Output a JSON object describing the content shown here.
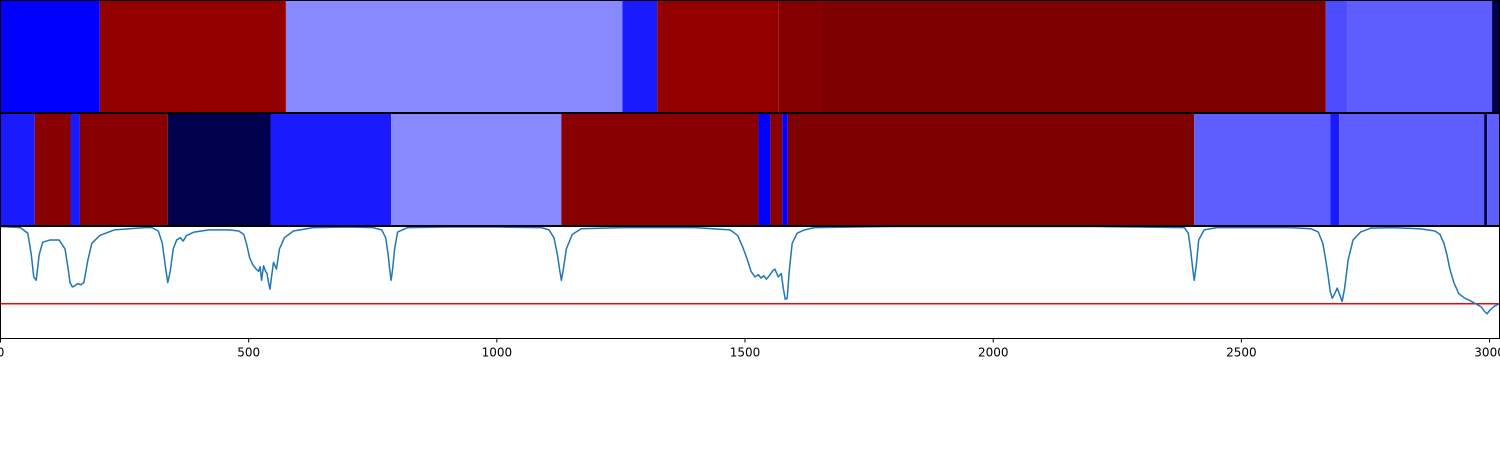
{
  "chart_data": [
    {
      "type": "heatmap",
      "colors": {
        "bright_blue": "#0000ff",
        "deep_blue": "#1a1aff",
        "mid_blue": "#4d4dff",
        "periwinkle": "#5e5eff",
        "light_blue": "#8888ff",
        "navy": "#00004c",
        "red": "#920000",
        "dark_red": "#880000",
        "darker_red": "#840000",
        "maroon": "#7f0000"
      },
      "segments": [
        {
          "start": 0,
          "end": 200,
          "color": "bright_blue"
        },
        {
          "start": 200,
          "end": 575,
          "color": "red"
        },
        {
          "start": 575,
          "end": 1253,
          "color": "light_blue"
        },
        {
          "start": 1253,
          "end": 1323,
          "color": "deep_blue"
        },
        {
          "start": 1323,
          "end": 1567,
          "color": "red"
        },
        {
          "start": 1567,
          "end": 1653,
          "color": "darker_red"
        },
        {
          "start": 1653,
          "end": 2670,
          "color": "maroon"
        },
        {
          "start": 2670,
          "end": 2714,
          "color": "mid_blue"
        },
        {
          "start": 2714,
          "end": 3005,
          "color": "periwinkle"
        },
        {
          "start": 3005,
          "end": 3020,
          "color": "navy"
        }
      ]
    },
    {
      "type": "heatmap",
      "segments": [
        {
          "start": 0,
          "end": 69,
          "color": "deep_blue"
        },
        {
          "start": 69,
          "end": 141,
          "color": "dark_red"
        },
        {
          "start": 141,
          "end": 160,
          "color": "deep_blue"
        },
        {
          "start": 160,
          "end": 337,
          "color": "dark_red"
        },
        {
          "start": 337,
          "end": 544,
          "color": "navy"
        },
        {
          "start": 544,
          "end": 787,
          "color": "deep_blue"
        },
        {
          "start": 787,
          "end": 1130,
          "color": "light_blue"
        },
        {
          "start": 1130,
          "end": 1527,
          "color": "dark_red"
        },
        {
          "start": 1527,
          "end": 1551,
          "color": "bright_blue"
        },
        {
          "start": 1551,
          "end": 1575,
          "color": "dark_red"
        },
        {
          "start": 1575,
          "end": 1586,
          "color": "bright_blue"
        },
        {
          "start": 1586,
          "end": 2405,
          "color": "maroon"
        },
        {
          "start": 2405,
          "end": 2679,
          "color": "periwinkle"
        },
        {
          "start": 2679,
          "end": 2697,
          "color": "deep_blue"
        },
        {
          "start": 2697,
          "end": 2989,
          "color": "periwinkle"
        },
        {
          "start": 2989,
          "end": 2995,
          "color": "navy"
        },
        {
          "start": 2995,
          "end": 3020,
          "color": "periwinkle"
        }
      ]
    },
    {
      "type": "line",
      "x_ticks": [
        0,
        500,
        1000,
        1500,
        2000,
        2500,
        3000
      ],
      "xlim": [
        0,
        3020
      ],
      "ylim": [
        0,
        1
      ],
      "series": [
        {
          "color": "#1f77b4",
          "points": [
            [
              0,
              1.0
            ],
            [
              40,
              0.99
            ],
            [
              55,
              0.94
            ],
            [
              62,
              0.75
            ],
            [
              67,
              0.55
            ],
            [
              72,
              0.52
            ],
            [
              78,
              0.75
            ],
            [
              85,
              0.86
            ],
            [
              100,
              0.88
            ],
            [
              118,
              0.88
            ],
            [
              130,
              0.8
            ],
            [
              137,
              0.6
            ],
            [
              140,
              0.5
            ],
            [
              145,
              0.46
            ],
            [
              150,
              0.47
            ],
            [
              155,
              0.49
            ],
            [
              162,
              0.48
            ],
            [
              168,
              0.5
            ],
            [
              176,
              0.7
            ],
            [
              184,
              0.85
            ],
            [
              200,
              0.92
            ],
            [
              230,
              0.97
            ],
            [
              260,
              0.98
            ],
            [
              290,
              0.99
            ],
            [
              305,
              0.99
            ],
            [
              318,
              0.96
            ],
            [
              326,
              0.85
            ],
            [
              332,
              0.65
            ],
            [
              337,
              0.5
            ],
            [
              342,
              0.6
            ],
            [
              348,
              0.8
            ],
            [
              355,
              0.88
            ],
            [
              362,
              0.9
            ],
            [
              368,
              0.87
            ],
            [
              375,
              0.92
            ],
            [
              390,
              0.95
            ],
            [
              420,
              0.97
            ],
            [
              460,
              0.97
            ],
            [
              480,
              0.96
            ],
            [
              490,
              0.93
            ],
            [
              496,
              0.84
            ],
            [
              502,
              0.72
            ],
            [
              508,
              0.66
            ],
            [
              515,
              0.62
            ],
            [
              520,
              0.6
            ],
            [
              523,
              0.64
            ],
            [
              526,
              0.52
            ],
            [
              530,
              0.65
            ],
            [
              534,
              0.6
            ],
            [
              537,
              0.58
            ],
            [
              540,
              0.5
            ],
            [
              543,
              0.44
            ],
            [
              546,
              0.55
            ],
            [
              550,
              0.68
            ],
            [
              556,
              0.62
            ],
            [
              562,
              0.8
            ],
            [
              572,
              0.9
            ],
            [
              590,
              0.96
            ],
            [
              630,
              0.99
            ],
            [
              700,
              0.995
            ],
            [
              750,
              0.99
            ],
            [
              768,
              0.97
            ],
            [
              776,
              0.9
            ],
            [
              781,
              0.75
            ],
            [
              784,
              0.62
            ],
            [
              787,
              0.52
            ],
            [
              790,
              0.62
            ],
            [
              794,
              0.8
            ],
            [
              800,
              0.95
            ],
            [
              820,
              0.99
            ],
            [
              900,
              0.995
            ],
            [
              1000,
              0.995
            ],
            [
              1090,
              0.99
            ],
            [
              1105,
              0.97
            ],
            [
              1115,
              0.9
            ],
            [
              1122,
              0.75
            ],
            [
              1127,
              0.6
            ],
            [
              1130,
              0.52
            ],
            [
              1134,
              0.62
            ],
            [
              1140,
              0.8
            ],
            [
              1152,
              0.93
            ],
            [
              1170,
              0.98
            ],
            [
              1250,
              0.99
            ],
            [
              1400,
              0.99
            ],
            [
              1470,
              0.97
            ],
            [
              1485,
              0.92
            ],
            [
              1495,
              0.82
            ],
            [
              1505,
              0.7
            ],
            [
              1512,
              0.6
            ],
            [
              1520,
              0.55
            ],
            [
              1527,
              0.57
            ],
            [
              1532,
              0.54
            ],
            [
              1538,
              0.56
            ],
            [
              1543,
              0.53
            ],
            [
              1549,
              0.56
            ],
            [
              1555,
              0.6
            ],
            [
              1560,
              0.62
            ],
            [
              1567,
              0.55
            ],
            [
              1573,
              0.58
            ],
            [
              1577,
              0.45
            ],
            [
              1581,
              0.35
            ],
            [
              1585,
              0.36
            ],
            [
              1589,
              0.6
            ],
            [
              1595,
              0.85
            ],
            [
              1605,
              0.94
            ],
            [
              1620,
              0.97
            ],
            [
              1640,
              0.99
            ],
            [
              1800,
              1.0
            ],
            [
              2000,
              1.0
            ],
            [
              2200,
              1.0
            ],
            [
              2385,
              0.99
            ],
            [
              2393,
              0.94
            ],
            [
              2398,
              0.78
            ],
            [
              2402,
              0.62
            ],
            [
              2405,
              0.52
            ],
            [
              2409,
              0.65
            ],
            [
              2414,
              0.88
            ],
            [
              2425,
              0.97
            ],
            [
              2450,
              0.99
            ],
            [
              2600,
              0.99
            ],
            [
              2640,
              0.98
            ],
            [
              2655,
              0.95
            ],
            [
              2664,
              0.85
            ],
            [
              2670,
              0.7
            ],
            [
              2675,
              0.55
            ],
            [
              2679,
              0.42
            ],
            [
              2683,
              0.36
            ],
            [
              2688,
              0.4
            ],
            [
              2693,
              0.45
            ],
            [
              2699,
              0.38
            ],
            [
              2703,
              0.33
            ],
            [
              2708,
              0.45
            ],
            [
              2715,
              0.7
            ],
            [
              2725,
              0.88
            ],
            [
              2740,
              0.95
            ],
            [
              2760,
              0.985
            ],
            [
              2800,
              0.99
            ],
            [
              2860,
              0.98
            ],
            [
              2890,
              0.96
            ],
            [
              2900,
              0.93
            ],
            [
              2908,
              0.85
            ],
            [
              2914,
              0.75
            ],
            [
              2920,
              0.62
            ],
            [
              2928,
              0.5
            ],
            [
              2938,
              0.4
            ],
            [
              2950,
              0.36
            ],
            [
              2960,
              0.34
            ],
            [
              2968,
              0.32
            ],
            [
              2976,
              0.3
            ],
            [
              2984,
              0.28
            ],
            [
              2990,
              0.24
            ],
            [
              2995,
              0.22
            ],
            [
              3000,
              0.25
            ],
            [
              3010,
              0.29
            ],
            [
              3020,
              0.31
            ]
          ]
        }
      ],
      "threshold": {
        "y": 0.31,
        "color": "#ff0000"
      }
    }
  ]
}
